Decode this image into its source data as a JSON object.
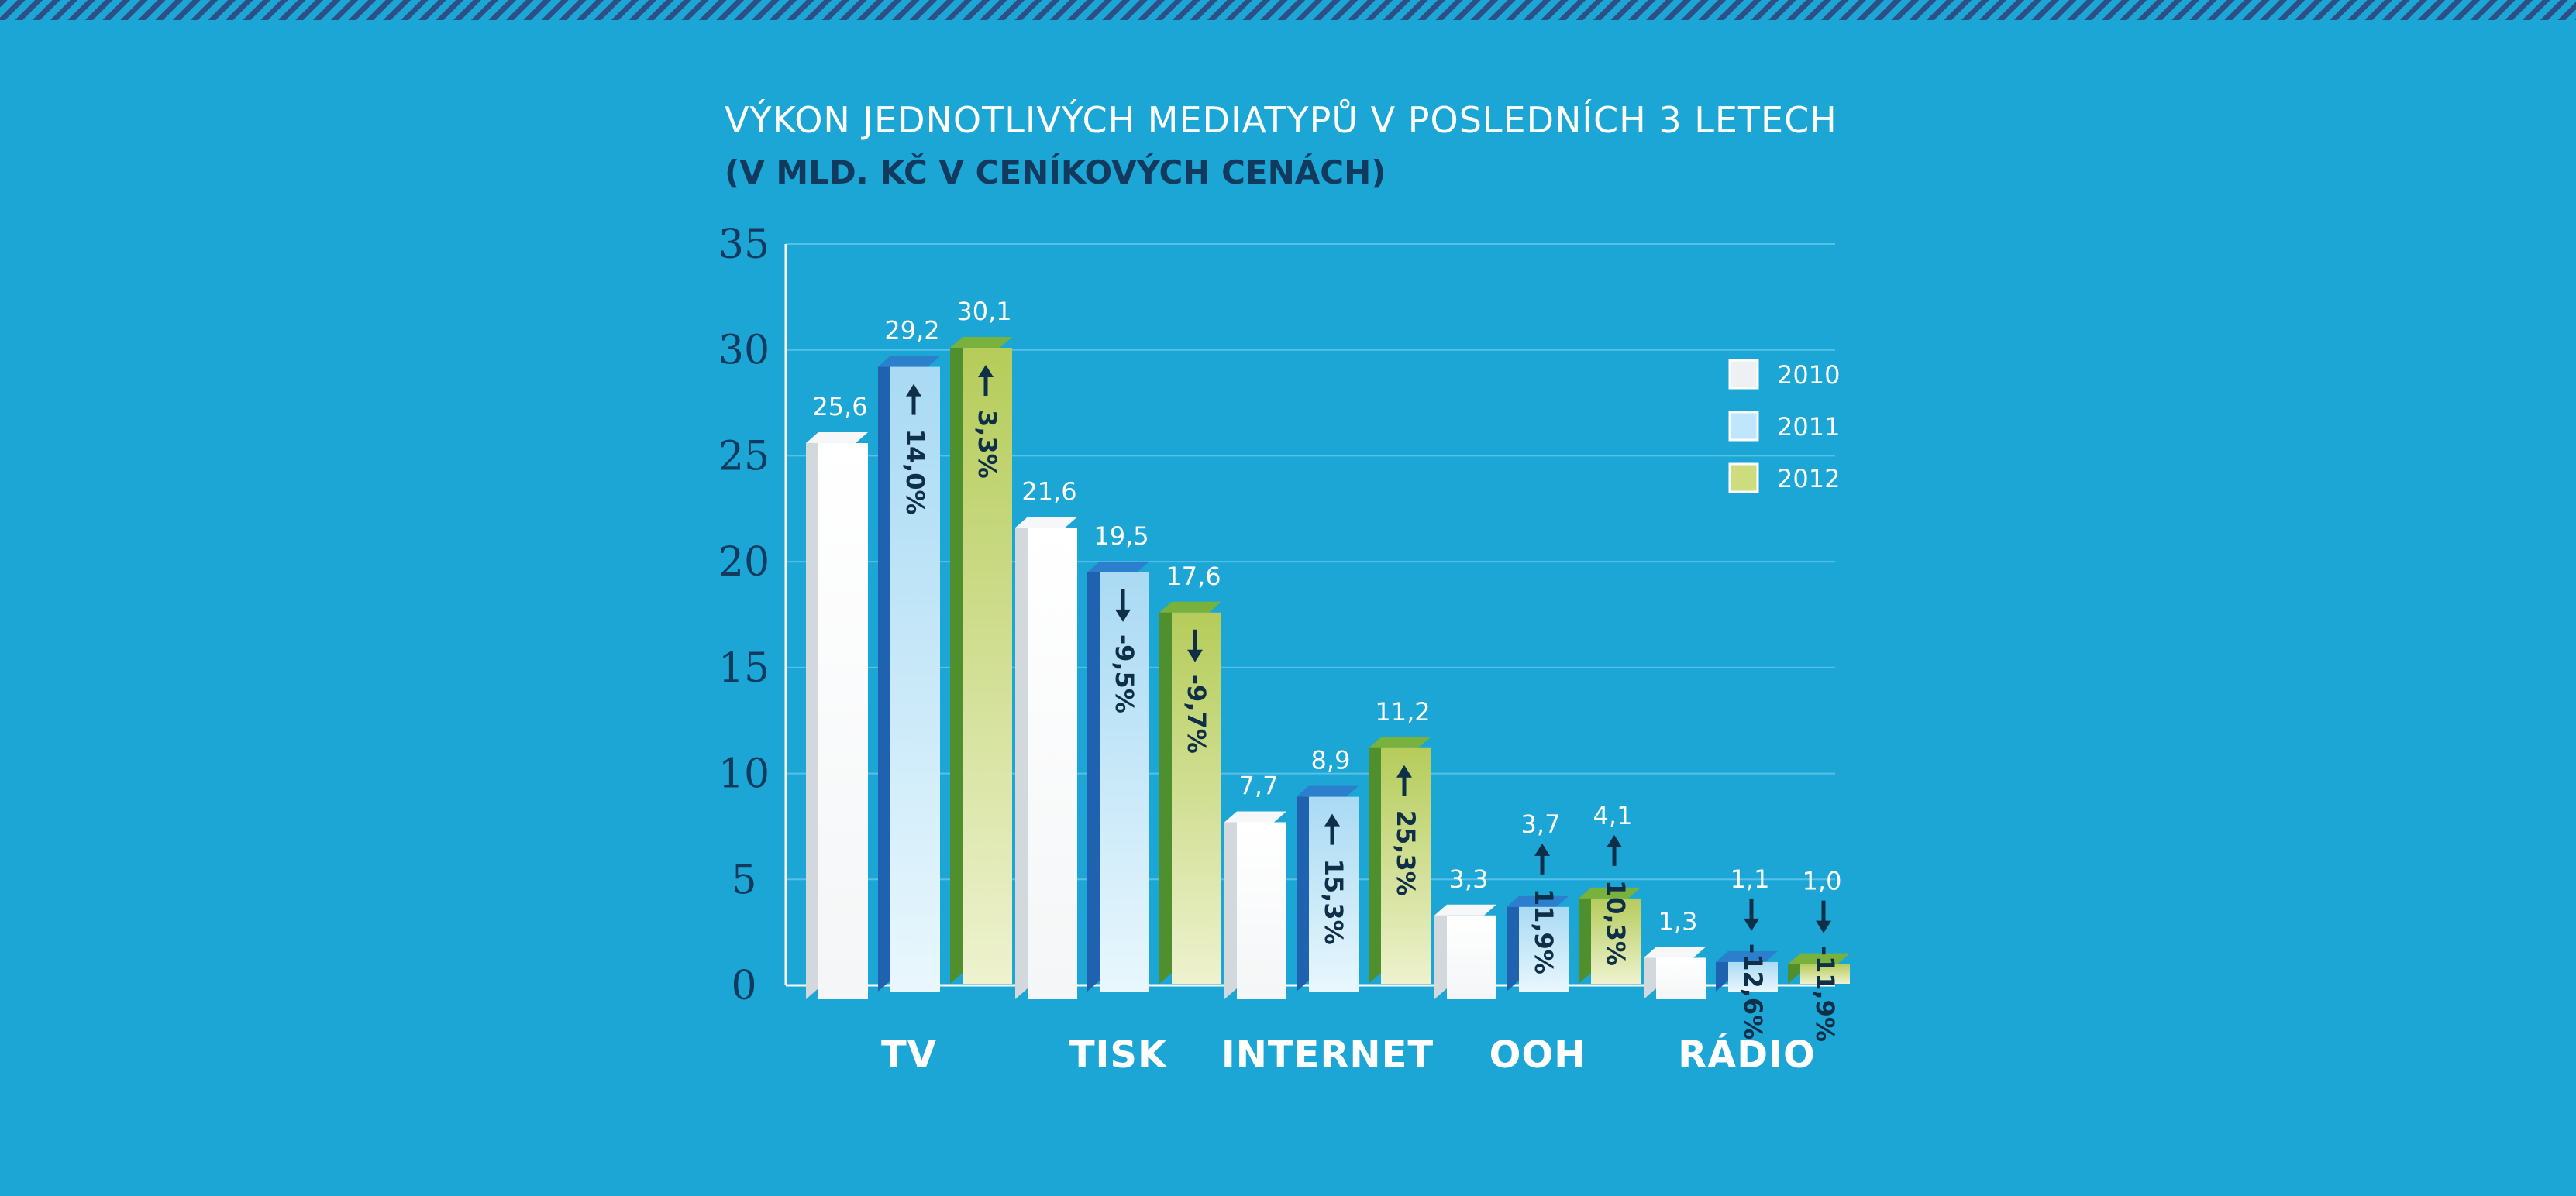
{
  "title": "VÝKON JEDNOTLIVÝCH MEDIATYPŮ V POSLEDNÍCH 3 LETECH",
  "subtitle": "(V MLD. KČ V CENÍKOVÝCH CENÁCH)",
  "colors": {
    "background": "#1ca6d6",
    "stripe": "#2e4f86",
    "dark_text": "#123a5e",
    "bar_2010": "#ffffff",
    "bar_2011": "#bfe6fa",
    "bar_2012": "#cddc7c"
  },
  "chart_data": {
    "type": "bar",
    "title": "VÝKON JEDNOTLIVÝCH MEDIATYPŮ V POSLEDNÍCH 3 LETECH",
    "subtitle": "(V MLD. KČ V CENÍKOVÝCH CENÁCH)",
    "categories": [
      "TV",
      "TISK",
      "INTERNET",
      "OOH",
      "RÁDIO"
    ],
    "series": [
      {
        "name": "2010",
        "values": [
          25.6,
          21.6,
          7.7,
          3.3,
          1.3
        ],
        "labels": [
          "25,6",
          "21,6",
          "7,7",
          "3,3",
          "1,3"
        ]
      },
      {
        "name": "2011",
        "values": [
          29.2,
          19.5,
          8.9,
          3.7,
          1.1
        ],
        "labels": [
          "29,2",
          "19,5",
          "8,9",
          "3,7",
          "1,1"
        ]
      },
      {
        "name": "2012",
        "values": [
          30.1,
          17.6,
          11.2,
          4.1,
          1.0
        ],
        "labels": [
          "30,1",
          "17,6",
          "11,2",
          "4,1",
          "1,0"
        ]
      }
    ],
    "changes": {
      "2011": [
        {
          "text": "14,0%",
          "dir": "up"
        },
        {
          "text": "-9,5%",
          "dir": "down"
        },
        {
          "text": "15,3%",
          "dir": "up"
        },
        {
          "text": "11,9%",
          "dir": "up"
        },
        {
          "text": "-12,6%",
          "dir": "down"
        }
      ],
      "2012": [
        {
          "text": "3,3%",
          "dir": "up"
        },
        {
          "text": "-9,7%",
          "dir": "down"
        },
        {
          "text": "25,3%",
          "dir": "up"
        },
        {
          "text": "10,3%",
          "dir": "up"
        },
        {
          "text": "-11,9%",
          "dir": "down"
        }
      ]
    },
    "yticks": [
      "0",
      "5",
      "10",
      "15",
      "20",
      "25",
      "30",
      "35"
    ],
    "ylim": [
      0,
      35
    ],
    "grid": true,
    "legend": {
      "position": "right",
      "items": [
        "2010",
        "2011",
        "2012"
      ]
    }
  }
}
